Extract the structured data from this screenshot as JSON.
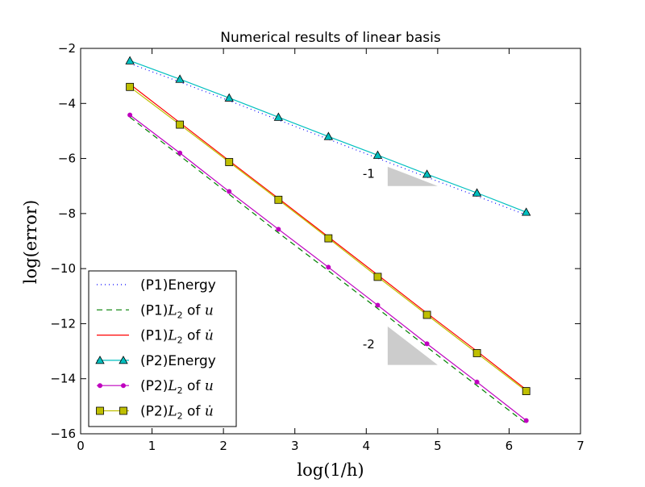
{
  "chart_data": {
    "type": "line",
    "title": "Numerical results of linear basis",
    "xlabel": "log(1/h)",
    "ylabel": "log(error)",
    "xlim": [
      0,
      7
    ],
    "ylim": [
      -16,
      -2
    ],
    "xticks": [
      0,
      1,
      2,
      3,
      4,
      5,
      6,
      7
    ],
    "yticks": [
      -16,
      -14,
      -12,
      -10,
      -8,
      -6,
      -4,
      -2
    ],
    "grid": false,
    "legend_position": "lower-left",
    "x": [
      0.69,
      1.39,
      2.08,
      2.77,
      3.47,
      4.16,
      4.85,
      5.55,
      6.24
    ],
    "series": [
      {
        "name": "(P1)Energy",
        "legend_prefix": "(P1)",
        "legend_rest": "Energy",
        "legend_math": "",
        "color": "#0000ff",
        "style": "dashdot",
        "marker": "none",
        "values": [
          -2.55,
          -3.22,
          -3.9,
          -4.6,
          -5.3,
          -5.99,
          -6.68,
          -7.37,
          -8.05
        ]
      },
      {
        "name": "(P1)L_2 of u",
        "legend_prefix": "(P1)",
        "legend_rest": " of ",
        "legend_math": "u",
        "color": "#008000",
        "style": "dashed",
        "marker": "none",
        "values": [
          -4.5,
          -5.9,
          -7.3,
          -8.7,
          -10.08,
          -11.45,
          -12.85,
          -14.25,
          -15.63
        ]
      },
      {
        "name": "(P1)L_2 of u-dot",
        "legend_prefix": "(P1)",
        "legend_rest": " of ",
        "legend_math": "u̇",
        "color": "#ff0000",
        "style": "solid",
        "marker": "none",
        "values": [
          -3.3,
          -4.7,
          -6.08,
          -7.45,
          -8.85,
          -10.23,
          -11.62,
          -13.0,
          -14.4
        ]
      },
      {
        "name": "(P2)Energy",
        "legend_prefix": "(P2)",
        "legend_rest": "Energy",
        "legend_math": "",
        "color": "#00bfbf",
        "style": "solid",
        "marker": "triangle",
        "values": [
          -2.45,
          -3.12,
          -3.8,
          -4.5,
          -5.2,
          -5.88,
          -6.57,
          -7.25,
          -7.95
        ]
      },
      {
        "name": "(P2)L_2 of u",
        "legend_prefix": "(P2)",
        "legend_rest": " of ",
        "legend_math": "u",
        "color": "#bf00bf",
        "style": "solid",
        "marker": "dot",
        "values": [
          -4.42,
          -5.8,
          -7.2,
          -8.57,
          -9.95,
          -11.33,
          -12.73,
          -14.12,
          -15.52
        ]
      },
      {
        "name": "(P2)L_2 of u-dot",
        "legend_prefix": "(P2)",
        "legend_rest": " of ",
        "legend_math": "u̇",
        "color": "#bfbf00",
        "style": "solid",
        "marker": "square",
        "values": [
          -3.4,
          -4.77,
          -6.13,
          -7.5,
          -8.9,
          -10.3,
          -11.68,
          -13.07,
          -14.45
        ]
      }
    ],
    "annotations": [
      {
        "label": "-1",
        "x": 3.95,
        "y": -6.7,
        "triangle": [
          [
            4.3,
            -6.3
          ],
          [
            4.3,
            -7.0
          ],
          [
            5.0,
            -7.0
          ]
        ]
      },
      {
        "label": "-2",
        "x": 3.95,
        "y": -12.9,
        "triangle": [
          [
            4.3,
            -12.1
          ],
          [
            4.3,
            -13.5
          ],
          [
            5.0,
            -13.5
          ]
        ]
      }
    ]
  }
}
